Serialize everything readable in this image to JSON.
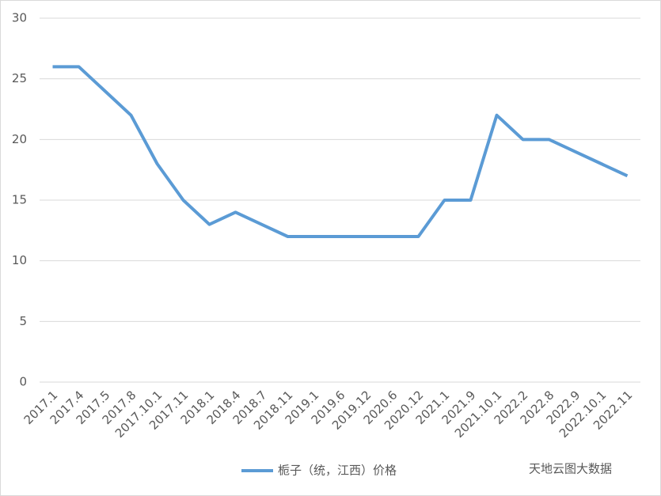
{
  "chart_data": {
    "type": "line",
    "categories": [
      "2017.1",
      "2017.4",
      "2017.5",
      "2017.8",
      "2017.10.1",
      "2017.11",
      "2018.1",
      "2018.4",
      "2018.7",
      "2018.11",
      "2019.1",
      "2019.6",
      "2019.12",
      "2020.6",
      "2020.12",
      "2021.1",
      "2021.9",
      "2021.10.1",
      "2022.2",
      "2022.8",
      "2022.9",
      "2022.10.1",
      "2022.11"
    ],
    "series": [
      {
        "name": "栀子（统，江西）价格",
        "color": "#5b9bd5",
        "values": [
          26,
          26,
          24,
          22,
          18,
          15,
          13,
          14,
          13,
          12,
          12,
          12,
          12,
          12,
          12,
          15,
          15,
          22,
          20,
          20,
          19,
          18,
          17
        ]
      }
    ],
    "ylim": [
      0,
      30
    ],
    "yticks": [
      0,
      5,
      10,
      15,
      20,
      25,
      30
    ],
    "grid": true,
    "legend": "bottom",
    "watermark": "天地云图大数据"
  }
}
